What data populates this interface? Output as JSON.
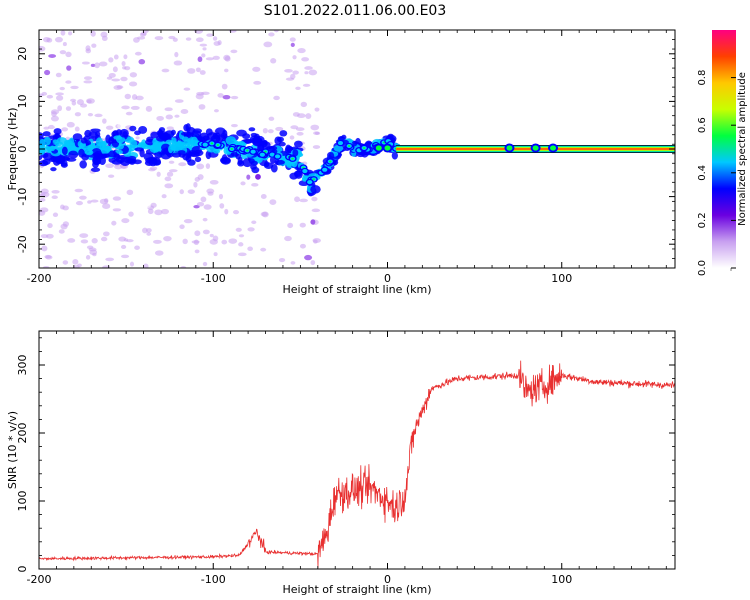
{
  "title": "S101.2022.011.06.00.E03",
  "chart_data": [
    {
      "type": "heatmap",
      "xlabel": "Height of straight line (km)",
      "ylabel": "Frequency (Hz)",
      "xlim": [
        -200,
        165
      ],
      "ylim": [
        -25,
        25
      ],
      "xticks": [
        -200,
        -100,
        0,
        100
      ],
      "yticks": [
        -20,
        -10,
        0,
        10,
        20
      ],
      "colorbar": {
        "label": "Normalized spectral amplitude",
        "range": [
          0,
          1
        ],
        "ticks": [
          "0.0",
          "0.2",
          "0.4",
          "0.6",
          "0.8"
        ],
        "colors": [
          "#ffffff",
          "#c8a0f0",
          "#6a00e0",
          "#0000ff",
          "#00c8ff",
          "#00ff40",
          "#c8ff00",
          "#ffc800",
          "#ff4000",
          "#ff0080"
        ]
      },
      "ridge": [
        {
          "x": -200,
          "y": 0
        },
        {
          "x": -150,
          "y": 0.5
        },
        {
          "x": -100,
          "y": 1
        },
        {
          "x": -70,
          "y": -1
        },
        {
          "x": -50,
          "y": -2
        },
        {
          "x": -45,
          "y": -7
        },
        {
          "x": -35,
          "y": -4
        },
        {
          "x": -25,
          "y": 2
        },
        {
          "x": -20,
          "y": 0
        },
        {
          "x": -10,
          "y": 0
        },
        {
          "x": 0,
          "y": 1.5
        },
        {
          "x": 5,
          "y": 0
        },
        {
          "x": 165,
          "y": 0
        }
      ]
    },
    {
      "type": "line",
      "xlabel": "Height of straight line (km)",
      "ylabel": "SNR (10 * v/v)",
      "xlim": [
        -200,
        165
      ],
      "ylim": [
        0,
        350
      ],
      "xticks": [
        -200,
        -100,
        0,
        100
      ],
      "yticks": [
        0,
        100,
        200,
        300
      ],
      "color": "#e83030",
      "envelope": [
        {
          "x": -200,
          "y": 15
        },
        {
          "x": -100,
          "y": 18
        },
        {
          "x": -85,
          "y": 20
        },
        {
          "x": -75,
          "y": 55
        },
        {
          "x": -70,
          "y": 25
        },
        {
          "x": -40,
          "y": 22
        },
        {
          "x": -35,
          "y": 50
        },
        {
          "x": -30,
          "y": 110
        },
        {
          "x": -10,
          "y": 120
        },
        {
          "x": 5,
          "y": 90
        },
        {
          "x": 10,
          "y": 110
        },
        {
          "x": 15,
          "y": 200
        },
        {
          "x": 25,
          "y": 265
        },
        {
          "x": 40,
          "y": 280
        },
        {
          "x": 75,
          "y": 285
        },
        {
          "x": 80,
          "y": 260
        },
        {
          "x": 90,
          "y": 270
        },
        {
          "x": 100,
          "y": 285
        },
        {
          "x": 120,
          "y": 275
        },
        {
          "x": 165,
          "y": 270
        }
      ]
    }
  ]
}
